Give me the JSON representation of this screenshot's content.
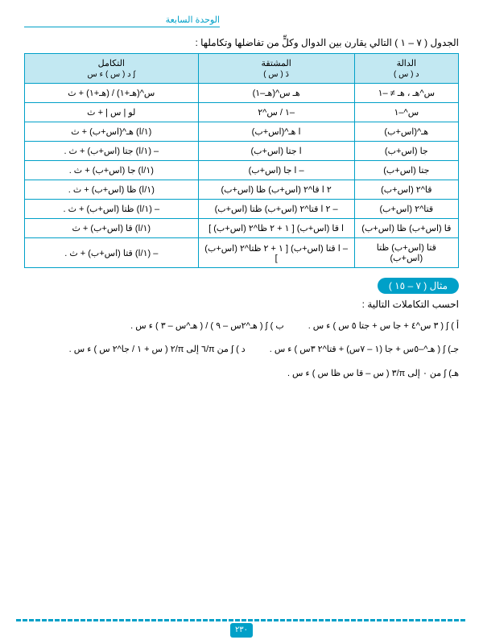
{
  "unit_header": "الوحدة السابعة",
  "intro": "الجدول ( ٧ – ١ ) التالي يقارن بين الدوال وكلٍّ من تفاضلها وتكاملها :",
  "table": {
    "headers": {
      "func": "الدالة",
      "func_sub": "د ( س )",
      "deriv": "المشتقة",
      "deriv_sub": "دَ ( س )",
      "integ": "التكامل",
      "integ_sub": "∫ د ( س ) ء س"
    },
    "rows": [
      {
        "f": "س^هـ ، هـ ≠ –١",
        "d": "هـ س^(هـ–١)",
        "i": "س^(هـ+١) / (هـ+١) + ث"
      },
      {
        "f": "س^–١",
        "d": "–١ / س^٢",
        "i": "لو | س | + ث"
      },
      {
        "f": "هـ^(اس+ب)",
        "d": "ا هـ^(اس+ب)",
        "i": "(١/ا) هـ^(اس+ب) + ث"
      },
      {
        "f": "جا (اس+ب)",
        "d": "ا جتا (اس+ب)",
        "i": "– (١/ا) جتا (اس+ب) + ث ."
      },
      {
        "f": "جتا (اس+ب)",
        "d": "– ا جا (اس+ب)",
        "i": "(١/ا) جا (اس+ب) + ث ."
      },
      {
        "f": "قا^٢ (اس+ب)",
        "d": "٢ ا قا^٢ (اس+ب) ظا (اس+ب)",
        "i": "(١/ا) ظا (اس+ب) + ث ."
      },
      {
        "f": "قتا^٢ (اس+ب)",
        "d": "– ٢ ا قتا^٢ (اس+ب) ظتا (اس+ب)",
        "i": "– (١/ا) ظتا (اس+ب) + ث ."
      },
      {
        "f": "قا (اس+ب) ظا (اس+ب)",
        "d": "ا قا (اس+ب) [ ١ + ٢ ظا^٢ (اس+ب) ]",
        "i": "(١/ا) قا (اس+ب) + ث"
      },
      {
        "f": "قتا (اس+ب) ظتا (اس+ب)",
        "d": "– ا قتا (اس+ب) [ ١ + ٢ ظتا^٢ (اس+ب) ]",
        "i": "– (١/ا) قتا (اس+ب) + ث ."
      }
    ]
  },
  "example_label": "مثال ( ٧ – ١٥ )",
  "example_prompt": "احسب التكاملات التالية :",
  "problems": {
    "a": "أ )    ∫  ( ٣ س^٤ + جا س + جتا ٥ س ) ء س .",
    "b": "ب )    ∫  ( هـ^٢س – ٩ ) / ( هـ^س – ٣ )  ء س .",
    "c": "جـ)   ∫ ( هـ^–٥س + جا (١ – ٧س) + قتا^٢ ٣س ) ء س .",
    "d": "د )   ∫ من π/٦ إلى π/٢  ( س + ١ / جا^٢ س ) ء س .",
    "e": "هـ)   ∫ من ٠ إلى π/٣  ( س – قا س ظا س ) ء س ."
  },
  "page_number": "٢٣٠",
  "colors": {
    "accent": "#00a0c8",
    "header_bg": "#c2e8f2",
    "text": "#000000",
    "bg": "#ffffff"
  }
}
